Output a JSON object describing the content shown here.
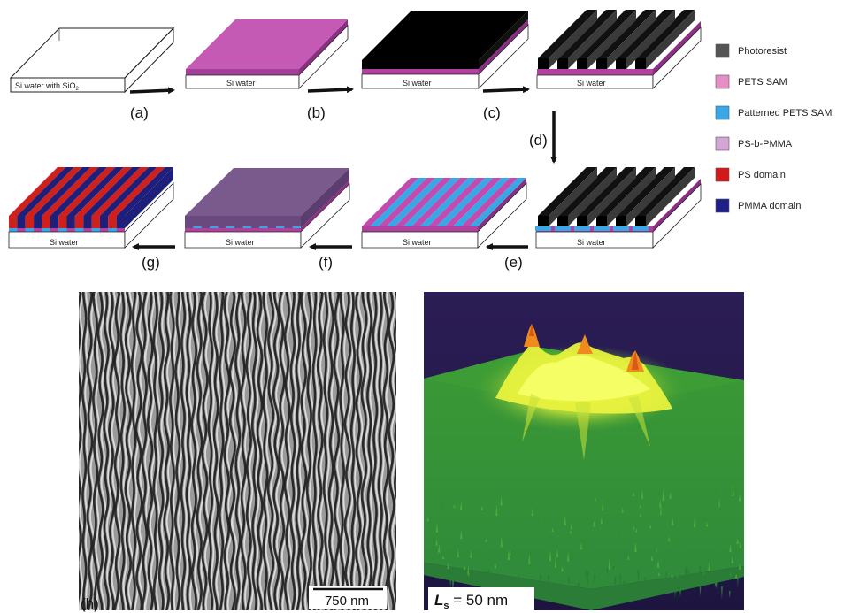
{
  "figure": {
    "substrate_initial_label": "Si water with SiO",
    "substrate_initial_subscript": "2",
    "substrate_label": "Si water",
    "step_labels": {
      "a": "(a)",
      "b": "(b)",
      "c": "(c)",
      "d": "(d)",
      "e": "(e)",
      "f": "(f)",
      "g": "(g)"
    },
    "legend": [
      {
        "label": "Photoresist",
        "color": "#555555"
      },
      {
        "label": "PETS SAM",
        "color": "#e58fc6"
      },
      {
        "label": "Patterned PETS SAM",
        "color": "#3aa8e8"
      },
      {
        "label": "PS-b-PMMA",
        "color": "#d4a6d6"
      },
      {
        "label": "PS domain",
        "color": "#d11a1a"
      },
      {
        "label": "PMMA domain",
        "color": "#1f1f8a"
      }
    ],
    "panel_h_label": "(h)",
    "scale_bar_text": "750 nm",
    "ls_symbol": "L",
    "ls_subscript": "s",
    "ls_value_text": " = 50 nm"
  }
}
